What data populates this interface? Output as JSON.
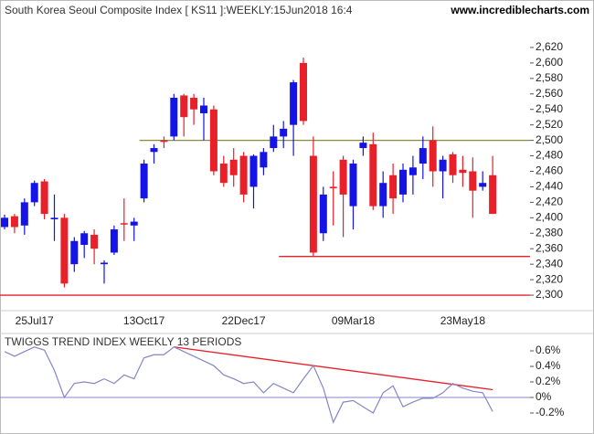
{
  "chart_data": [
    {
      "type": "candlestick",
      "title": "South Korea Seoul Composite Index [ KS11 ]:WEEKLY:15Jun2018 16:4",
      "source": "www.incrediblecharts.com",
      "categories": [
        null,
        null,
        null,
        "25Jul17",
        null,
        null,
        null,
        null,
        null,
        null,
        null,
        null,
        null,
        null,
        "13Oct17",
        null,
        null,
        null,
        null,
        null,
        null,
        null,
        null,
        null,
        "22Dec17",
        null,
        null,
        null,
        null,
        null,
        null,
        null,
        null,
        null,
        null,
        "09Mar18",
        null,
        null,
        null,
        null,
        null,
        null,
        null,
        null,
        null,
        null,
        "23May18",
        null,
        null,
        null
      ],
      "open": [
        2388,
        2402,
        2390,
        2420,
        2447,
        2398,
        2400,
        2340,
        2365,
        2378,
        2340,
        2355,
        2393,
        2390,
        2425,
        2485,
        2500,
        2505,
        2558,
        2555,
        2535,
        2540,
        2470,
        2475,
        2480,
        2440,
        2465,
        2490,
        2505,
        2520,
        2600,
        2480,
        2380,
        2440,
        2475,
        2415,
        2490,
        2495,
        2415,
        2455,
        2430,
        2455,
        2470,
        2500,
        2460,
        2482,
        2462,
        2460,
        2440,
        2455
      ],
      "high": [
        2404,
        2405,
        2425,
        2448,
        2450,
        2430,
        2405,
        2375,
        2383,
        2385,
        2345,
        2390,
        2425,
        2400,
        2475,
        2495,
        2505,
        2560,
        2560,
        2560,
        2555,
        2545,
        2480,
        2490,
        2485,
        2482,
        2490,
        2520,
        2525,
        2578,
        2607,
        2505,
        2440,
        2460,
        2480,
        2475,
        2505,
        2510,
        2460,
        2470,
        2470,
        2480,
        2505,
        2518,
        2480,
        2485,
        2480,
        2478,
        2460,
        2480
      ],
      "low": [
        2385,
        2380,
        2378,
        2415,
        2398,
        2370,
        2310,
        2330,
        2348,
        2340,
        2315,
        2352,
        2370,
        2370,
        2420,
        2470,
        2490,
        2500,
        2505,
        2520,
        2500,
        2455,
        2440,
        2440,
        2420,
        2412,
        2455,
        2485,
        2490,
        2480,
        2520,
        2350,
        2370,
        2390,
        2375,
        2385,
        2480,
        2410,
        2400,
        2405,
        2420,
        2430,
        2450,
        2440,
        2425,
        2445,
        2440,
        2400,
        2435,
        2405
      ],
      "close": [
        2400,
        2388,
        2420,
        2445,
        2405,
        2400,
        2315,
        2370,
        2380,
        2360,
        2342,
        2385,
        2392,
        2395,
        2470,
        2490,
        2498,
        2555,
        2530,
        2540,
        2545,
        2460,
        2445,
        2455,
        2430,
        2480,
        2485,
        2505,
        2515,
        2575,
        2525,
        2355,
        2430,
        2438,
        2430,
        2470,
        2497,
        2415,
        2445,
        2425,
        2462,
        2465,
        2490,
        2460,
        2475,
        2455,
        2458,
        2435,
        2445,
        2405
      ],
      "up_color": "#1414e6",
      "down_color": "#e8202a",
      "ylim": [
        2280,
        2640
      ],
      "yticks": [
        {
          "value": 2300,
          "label": "2,300"
        },
        {
          "value": 2320,
          "label": "2,320"
        },
        {
          "value": 2340,
          "label": "2,340"
        },
        {
          "value": 2360,
          "label": "2,360"
        },
        {
          "value": 2380,
          "label": "2,380"
        },
        {
          "value": 2400,
          "label": "2,400"
        },
        {
          "value": 2420,
          "label": "2,420"
        },
        {
          "value": 2440,
          "label": "2,440"
        },
        {
          "value": 2460,
          "label": "2,460"
        },
        {
          "value": 2480,
          "label": "2,480"
        },
        {
          "value": 2500,
          "label": "2,500"
        },
        {
          "value": 2520,
          "label": "2,520"
        },
        {
          "value": 2540,
          "label": "2,540"
        },
        {
          "value": 2560,
          "label": "2,560"
        },
        {
          "value": 2580,
          "label": "2,580"
        },
        {
          "value": 2600,
          "label": "2,600"
        },
        {
          "value": 2620,
          "label": "2,620"
        }
      ],
      "lines": [
        {
          "value": 2500,
          "color": "#8b8b3a",
          "start": 14
        },
        {
          "value": 2350,
          "color": "#e8202a",
          "start": 28
        },
        {
          "value": 2300,
          "color": "#e8202a",
          "start": 0
        }
      ]
    },
    {
      "type": "line",
      "title": "TWIGGS TREND INDEX WEEKLY 13 PERIODS",
      "values": [
        0.59,
        0.53,
        0.59,
        0.65,
        0.61,
        0.35,
        0,
        0.18,
        0.2,
        0.18,
        0.24,
        0.18,
        0.29,
        0.24,
        0.51,
        0.55,
        0.55,
        0.65,
        0.59,
        0.53,
        0.47,
        0.41,
        0.29,
        0.24,
        0.18,
        0.2,
        0.06,
        0.18,
        0.12,
        0.06,
        0.24,
        0.41,
        0.12,
        -0.32,
        -0.06,
        -0.04,
        -0.12,
        -0.2,
        0.06,
        0.15,
        -0.12,
        -0.06,
        -0.01,
        -0.01,
        0.06,
        0.18,
        0.12,
        0.08,
        0.06,
        -0.18
      ],
      "color": "#8585c8",
      "ylim": [
        -0.4,
        0.8
      ],
      "yticks": [
        {
          "value": 0.6,
          "label": "0.6%"
        },
        {
          "value": 0.4,
          "label": "0.4%"
        },
        {
          "value": 0.2,
          "label": "0.2%"
        },
        {
          "value": 0,
          "label": "0%"
        },
        {
          "value": -0.2,
          "label": "-0.2%"
        }
      ],
      "zero_line": true,
      "zero_color": "#8585c8",
      "trendline": {
        "start": 17,
        "end": 49,
        "values": [
          0.65,
          0.1
        ],
        "color": "#e8202a"
      }
    }
  ]
}
